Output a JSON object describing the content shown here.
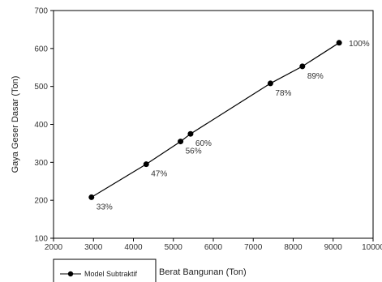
{
  "chart_data": {
    "type": "line",
    "xlabel": "Berat Bangunan (Ton)",
    "ylabel": "Gaya Geser Dasar (Ton)",
    "xlim": [
      2000,
      10000
    ],
    "ylim": [
      100,
      700
    ],
    "xticks": [
      2000,
      3000,
      4000,
      5000,
      6000,
      7000,
      8000,
      9000,
      10000
    ],
    "yticks": [
      100,
      200,
      300,
      400,
      500,
      600,
      700
    ],
    "grid": false,
    "legend_position": "bottom-left",
    "series": [
      {
        "name": "Model Subtraktif",
        "color": "#000000",
        "marker": "circle",
        "x": [
          2950,
          4320,
          5180,
          5430,
          7430,
          8230,
          9150
        ],
        "y": [
          208,
          295,
          355,
          375,
          508,
          553,
          615
        ],
        "labels": [
          "33%",
          "47%",
          "56%",
          "60%",
          "78%",
          "89%",
          "100%"
        ]
      }
    ]
  }
}
